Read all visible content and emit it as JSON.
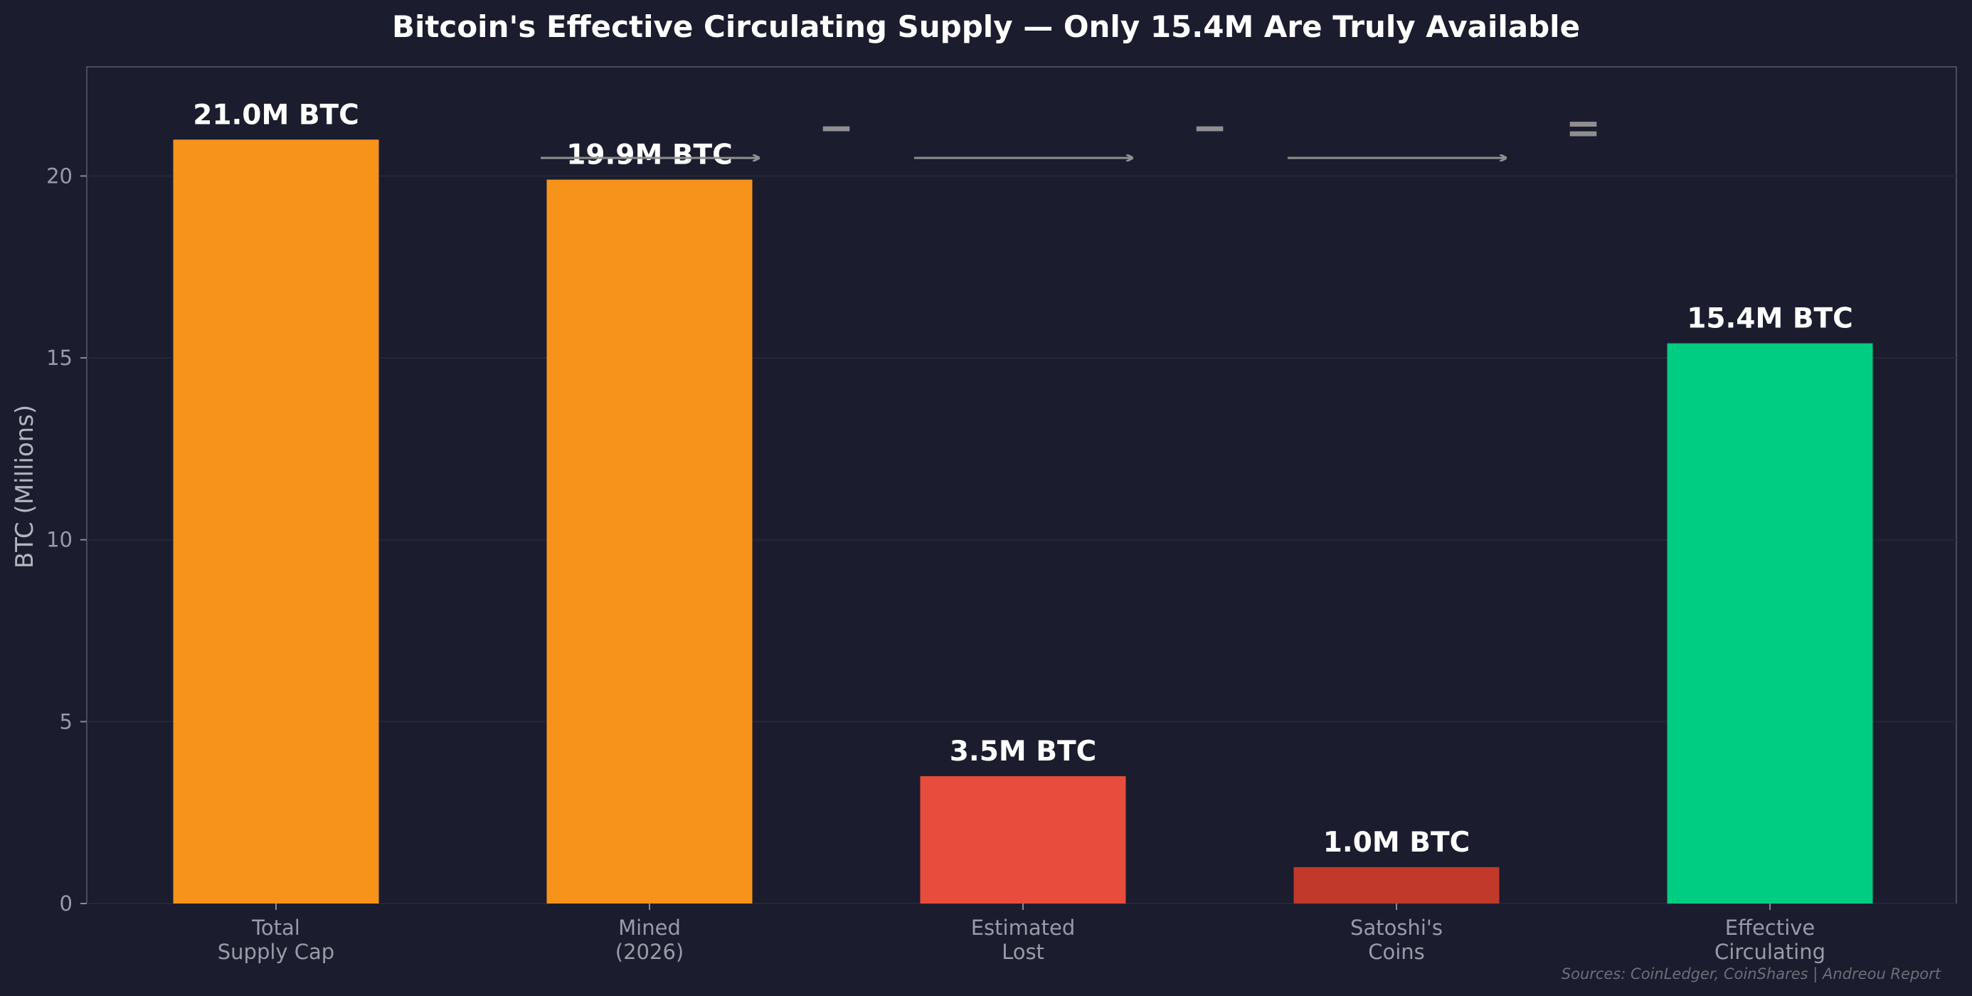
{
  "chart_data": {
    "type": "bar",
    "title": "Bitcoin's Effective Circulating Supply — Only 15.4M Are Truly Available",
    "xlabel": "",
    "ylabel": "BTC (Millions)",
    "ylim": [
      0,
      23
    ],
    "yticks": [
      0,
      5,
      10,
      15,
      20
    ],
    "grid": true,
    "categories": [
      [
        "Total",
        "Supply Cap"
      ],
      [
        "Mined",
        "(2026)"
      ],
      [
        "Estimated",
        "Lost"
      ],
      [
        "Satoshi's",
        "Coins"
      ],
      [
        "Effective",
        "Circulating"
      ]
    ],
    "values": [
      21.0,
      19.9,
      3.5,
      1.0,
      15.4
    ],
    "value_labels": [
      "21.0M BTC",
      "19.9M BTC",
      "3.5M BTC",
      "1.0M BTC",
      "15.4M BTC"
    ],
    "bar_colors": [
      "#f7931a",
      "#f7931a",
      "#e74c3c",
      "#c0392b",
      "#00cc82"
    ],
    "operators": [
      "−",
      "−",
      "="
    ],
    "source_note": "Sources: CoinLedger, CoinShares  |  Andreou Report"
  },
  "colors": {
    "background": "#1b1c2e",
    "axes_frame": "#4a4b60",
    "grid": "#25263a",
    "arrow": "#8f8f8f"
  }
}
